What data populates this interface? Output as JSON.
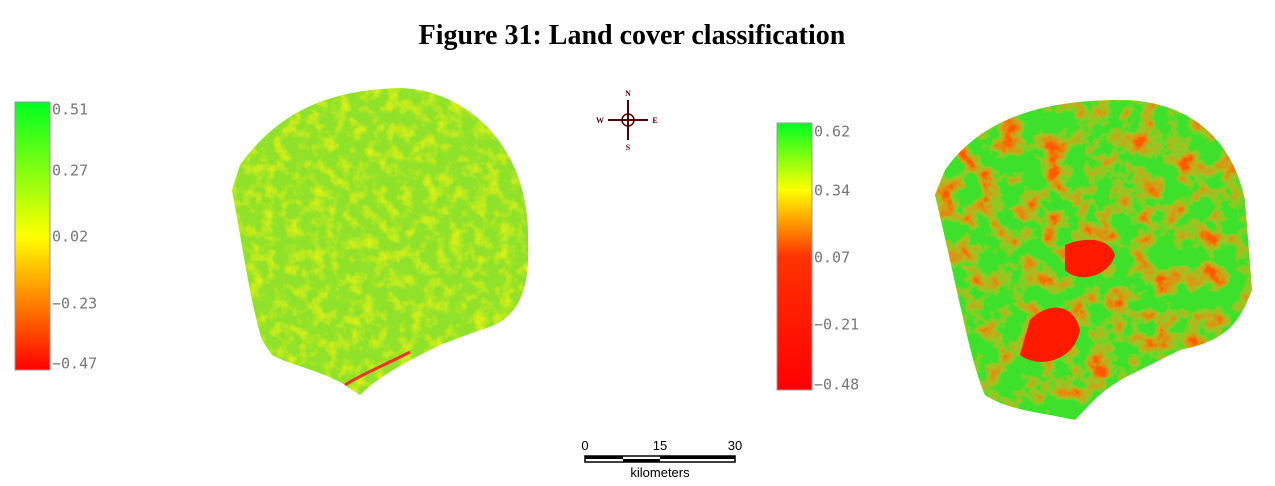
{
  "title": "Figure 31: Land cover classification",
  "legends": [
    {
      "labels": [
        "0.51",
        "0.27",
        "0.02",
        "−0.23",
        "−0.47"
      ]
    },
    {
      "labels": [
        "0.62",
        "0.34",
        "0.07",
        "−0.21",
        "−0.48"
      ]
    }
  ],
  "compass": {
    "north": "N",
    "south": "S",
    "east": "E",
    "west": "W"
  },
  "scale_bar": {
    "ticks": [
      "0",
      "15",
      "30"
    ],
    "unit": "kilometers"
  }
}
